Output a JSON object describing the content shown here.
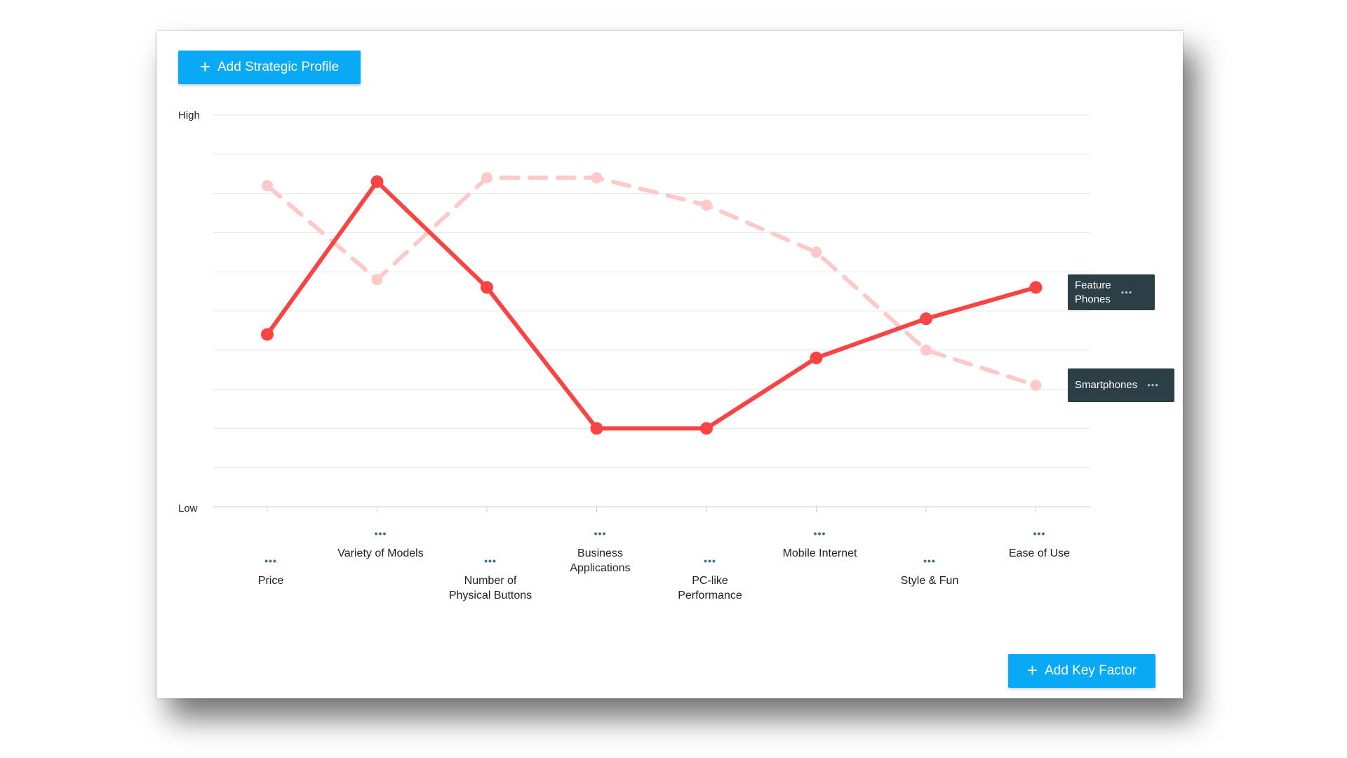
{
  "buttons": {
    "add_profile": "Add Strategic Profile",
    "add_factor": "Add Key Factor",
    "plus": "+"
  },
  "colors": {
    "accent": "#0aa9f5",
    "series_solid": "#f94444",
    "series_dashed": "#ffc9c9",
    "legend_bg": "#2c3e46"
  },
  "chart_data": {
    "type": "line",
    "title": "",
    "xlabel": "",
    "ylabel": "",
    "ylim": [
      0,
      10
    ],
    "y_tick_labels": {
      "top": "High",
      "bottom": "Low"
    },
    "grid": true,
    "categories": [
      "Price",
      "Variety of Models",
      "Number of\nPhysical Buttons",
      "Business\nApplications",
      "PC-like\nPerformance",
      "Mobile Internet",
      "Style & Fun",
      "Ease of Use"
    ],
    "category_menu_icon": "•••",
    "series": [
      {
        "name": "Feature\nPhones",
        "style": "solid",
        "values": [
          4.4,
          8.3,
          5.6,
          2.0,
          2.0,
          3.8,
          4.8,
          5.6
        ]
      },
      {
        "name": "Smartphones",
        "style": "dashed",
        "values": [
          8.2,
          5.8,
          8.4,
          8.4,
          7.7,
          6.5,
          4.0,
          3.1
        ]
      }
    ]
  },
  "legend_menu_icon": "•••"
}
